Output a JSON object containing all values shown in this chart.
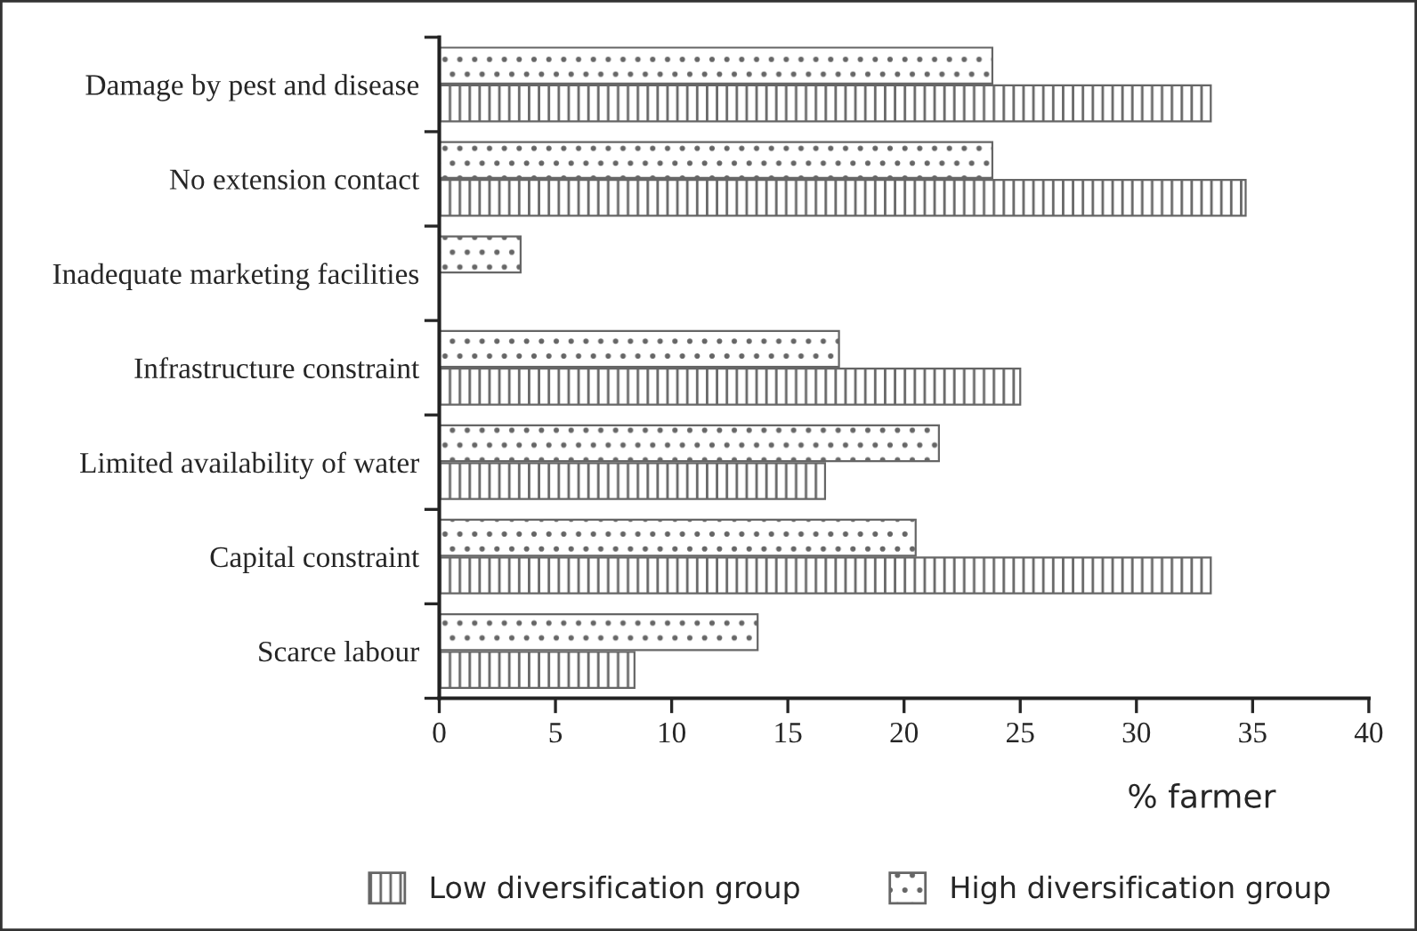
{
  "chart_data": {
    "type": "bar",
    "orientation": "horizontal",
    "xlabel": "% farmer",
    "categories": [
      "Damage by pest and disease",
      "No extension contact",
      "Inadequate marketing facilities",
      "Infrastructure constraint",
      "Limited availability of water",
      "Capital constraint",
      "Scarce labour"
    ],
    "series": [
      {
        "name": "Low diversification group",
        "color": "#666666",
        "values": [
          33.2,
          34.7,
          null,
          25.0,
          16.6,
          33.2,
          8.4
        ]
      },
      {
        "name": "High diversification group",
        "color": "#666666",
        "values": [
          23.8,
          23.8,
          3.5,
          17.2,
          21.5,
          20.5,
          13.7
        ]
      }
    ],
    "xlim": [
      0,
      40
    ],
    "xticks": [
      0,
      5,
      10,
      15,
      20,
      25,
      30,
      35,
      40
    ],
    "grid": false,
    "legend": "bottom"
  }
}
